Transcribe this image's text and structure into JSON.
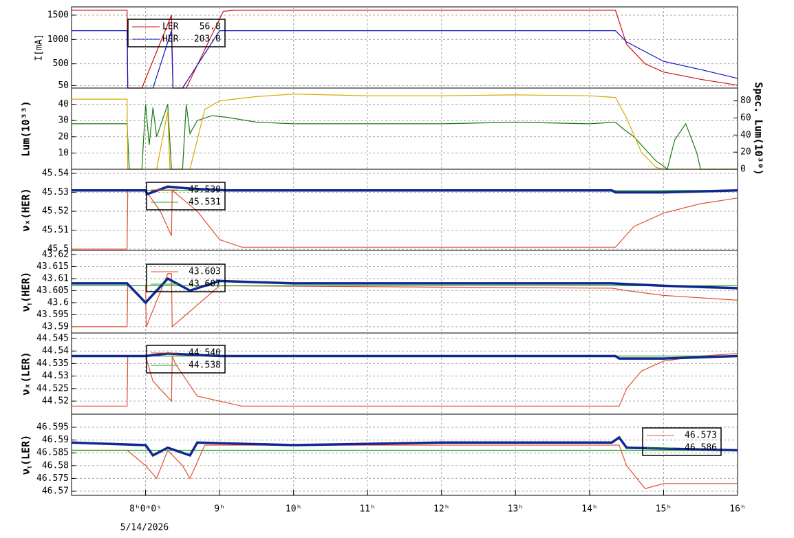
{
  "chart_data": [
    {
      "type": "line",
      "ylabel": "I[mA]",
      "xlim": [
        7,
        16
      ],
      "ylim": [
        0,
        1670
      ],
      "yticks": [
        50,
        500,
        1000,
        1500
      ],
      "series": [
        {
          "name": "LER",
          "legend_value": "56.8",
          "color": "#d01010",
          "x": [
            7,
            7.75,
            7.76,
            7.95,
            8.35,
            8.37,
            8.55,
            9.05,
            9.2,
            14.35,
            14.5,
            14.75,
            15,
            15.5,
            16
          ],
          "values": [
            1600,
            1600,
            0,
            0,
            1500,
            0,
            0,
            1580,
            1600,
            1600,
            900,
            500,
            330,
            180,
            60
          ]
        },
        {
          "name": "HER",
          "legend_value": "203.0",
          "color": "#1010c8",
          "x": [
            7,
            7.75,
            7.76,
            8.1,
            8.35,
            8.37,
            8.5,
            9.0,
            14.35,
            14.5,
            15,
            15.5,
            16
          ],
          "values": [
            1180,
            1180,
            0,
            0,
            1180,
            0,
            0,
            1180,
            1180,
            950,
            550,
            380,
            200
          ]
        }
      ]
    },
    {
      "type": "line",
      "ylabel": "Lum(10³³)",
      "y2label": "Spec. Lum(10³⁰)",
      "xlim": [
        7,
        16
      ],
      "ylim": [
        0,
        50
      ],
      "yticks": [
        10,
        20,
        30,
        40
      ],
      "y2lim": [
        0,
        95
      ],
      "y2ticks": [
        0,
        20,
        40,
        60,
        80
      ],
      "series": [
        {
          "color": "#1a7a10",
          "x": [
            7,
            7.75,
            7.78,
            7.95,
            8.0,
            8.05,
            8.1,
            8.15,
            8.3,
            8.35,
            8.5,
            8.55,
            8.6,
            8.7,
            8.9,
            9.1,
            9.5,
            10,
            11,
            12,
            13,
            14,
            14.35,
            14.45,
            14.6,
            14.8,
            14.9,
            15,
            15.05,
            15.15,
            15.3,
            15.45,
            15.5,
            16
          ],
          "values": [
            28,
            28,
            0,
            0,
            40,
            15,
            38,
            20,
            40,
            0,
            0,
            40,
            22,
            30,
            33,
            32,
            29,
            28,
            28,
            28,
            29,
            28,
            29,
            25,
            20,
            10,
            5,
            2,
            0,
            18,
            28,
            10,
            0,
            0
          ]
        },
        {
          "color": "#d8a800",
          "axis": "y2",
          "x": [
            7,
            7.75,
            7.76,
            8.15,
            8.3,
            8.33,
            8.6,
            8.8,
            9.0,
            9.5,
            10,
            11,
            12,
            13,
            14,
            14.35,
            14.5,
            14.7,
            14.9,
            15,
            16
          ],
          "values": [
            82,
            82,
            0,
            0,
            68,
            0,
            0,
            70,
            80,
            85,
            88,
            86,
            86,
            87,
            86,
            84,
            60,
            20,
            2,
            0,
            0
          ]
        }
      ]
    },
    {
      "type": "line",
      "ylabel": "νₓ(HER)",
      "xlim": [
        7,
        16
      ],
      "ylim": [
        45.4993,
        45.5422
      ],
      "yticks": [
        45.5,
        45.51,
        45.52,
        45.53,
        45.54
      ],
      "series": [
        {
          "legend_value": "45.530",
          "color": "#e05030",
          "x": [
            7,
            7.75,
            7.76,
            8.0,
            8.2,
            8.35,
            8.36,
            8.7,
            9,
            9.3,
            14.3,
            14.35,
            14.6,
            15,
            15.5,
            16
          ],
          "values": [
            45.5,
            45.5,
            45.531,
            45.531,
            45.52,
            45.507,
            45.531,
            45.52,
            45.505,
            45.501,
            45.501,
            45.501,
            45.512,
            45.519,
            45.524,
            45.527
          ]
        },
        {
          "legend_value": "45.531",
          "color": "#20a020",
          "x": [
            7,
            16
          ],
          "values": [
            45.531,
            45.531
          ]
        },
        {
          "color": "#102890",
          "x": [
            7,
            8,
            8.02,
            8.3,
            8.6,
            9.1,
            14.3,
            14.35,
            15,
            16
          ],
          "values": [
            45.531,
            45.531,
            45.529,
            45.533,
            45.532,
            45.531,
            45.531,
            45.53,
            45.53,
            45.531
          ]
        }
      ]
    },
    {
      "type": "line",
      "ylabel": "νᵧ(HER)",
      "xlim": [
        7,
        16
      ],
      "ylim": [
        43.5874,
        43.6217
      ],
      "yticks": [
        43.59,
        43.595,
        43.6,
        43.605,
        43.61,
        43.615,
        43.62
      ],
      "series": [
        {
          "legend_value": "43.603",
          "color": "#e05030",
          "x": [
            7,
            7.75,
            7.76,
            8.0,
            8.01,
            8.3,
            8.35,
            8.36,
            9.0,
            14.3,
            14.5,
            15,
            15.5,
            16
          ],
          "values": [
            43.59,
            43.59,
            43.607,
            43.607,
            43.59,
            43.612,
            43.612,
            43.59,
            43.607,
            43.606,
            43.605,
            43.603,
            43.602,
            43.601
          ]
        },
        {
          "legend_value": "43.607",
          "color": "#20a020",
          "x": [
            7,
            16
          ],
          "values": [
            43.607,
            43.607
          ]
        },
        {
          "color": "#102890",
          "x": [
            7,
            7.75,
            8,
            8.3,
            8.6,
            9,
            10,
            12,
            14.3,
            15,
            16
          ],
          "values": [
            43.608,
            43.608,
            43.6,
            43.61,
            43.605,
            43.609,
            43.608,
            43.608,
            43.608,
            43.607,
            43.606
          ]
        }
      ]
    },
    {
      "type": "line",
      "ylabel": "νₓ(LER)",
      "xlim": [
        7,
        16
      ],
      "ylim": [
        44.5148,
        44.5472
      ],
      "yticks": [
        44.52,
        44.525,
        44.53,
        44.535,
        44.54,
        44.545
      ],
      "series": [
        {
          "legend_value": "44.540",
          "color": "#e05030",
          "x": [
            7,
            7.75,
            7.76,
            8.0,
            8.1,
            8.35,
            8.36,
            8.4,
            8.7,
            9,
            9.3,
            14.4,
            14.5,
            14.7,
            15,
            15.5,
            16
          ],
          "values": [
            44.518,
            44.518,
            44.538,
            44.538,
            44.528,
            44.52,
            44.538,
            44.535,
            44.522,
            44.52,
            44.518,
            44.518,
            44.525,
            44.532,
            44.536,
            44.538,
            44.539
          ]
        },
        {
          "legend_value": "44.538",
          "color": "#20a020",
          "x": [
            7,
            16
          ],
          "values": [
            44.538,
            44.538
          ]
        },
        {
          "color": "#102890",
          "x": [
            7,
            8,
            8.3,
            9,
            12,
            14.35,
            14.4,
            15,
            16
          ],
          "values": [
            44.538,
            44.538,
            44.539,
            44.538,
            44.538,
            44.538,
            44.537,
            44.537,
            44.538
          ]
        }
      ]
    },
    {
      "type": "line",
      "ylabel": "νᵧ(LER)",
      "xlim": [
        7,
        16
      ],
      "ylim": [
        46.5684,
        46.6001
      ],
      "yticks": [
        46.57,
        46.575,
        46.58,
        46.585,
        46.59,
        46.595
      ],
      "xticks": [
        {
          "value": 8,
          "label": "8ʰ0ᵐ0ˢ"
        },
        {
          "value": 9,
          "label": "9ʰ"
        },
        {
          "value": 10,
          "label": "10ʰ"
        },
        {
          "value": 11,
          "label": "11ʰ"
        },
        {
          "value": 12,
          "label": "12ʰ"
        },
        {
          "value": 13,
          "label": "13ʰ"
        },
        {
          "value": 14,
          "label": "14ʰ"
        },
        {
          "value": 15,
          "label": "15ʰ"
        },
        {
          "value": 16,
          "label": "16ʰ"
        }
      ],
      "xlabel": "5/14/2026",
      "series": [
        {
          "legend_value": "46.573",
          "color": "#e05030",
          "x": [
            7,
            7.75,
            8.0,
            8.15,
            8.3,
            8.5,
            8.6,
            8.8,
            14.4,
            14.5,
            14.75,
            15,
            16
          ],
          "values": [
            46.586,
            46.586,
            46.58,
            46.575,
            46.586,
            46.58,
            46.575,
            46.588,
            46.588,
            46.58,
            46.571,
            46.573,
            46.573
          ]
        },
        {
          "legend_value": "46.586",
          "color": "#20a020",
          "x": [
            7,
            16
          ],
          "values": [
            46.586,
            46.586
          ]
        },
        {
          "color": "#102890",
          "x": [
            7,
            8,
            8.1,
            8.3,
            8.6,
            8.7,
            10,
            12,
            14.3,
            14.4,
            14.5,
            16
          ],
          "values": [
            46.589,
            46.588,
            46.584,
            46.587,
            46.584,
            46.589,
            46.588,
            46.589,
            46.589,
            46.591,
            46.587,
            46.586
          ]
        }
      ]
    }
  ]
}
